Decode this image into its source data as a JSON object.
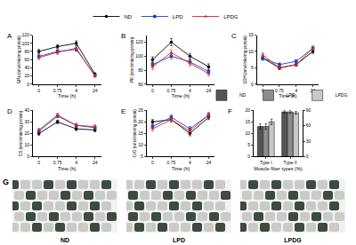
{
  "chart_data": [
    {
      "panel": "A",
      "type": "line",
      "xlabel": "Time (h)",
      "ylabel": "GPa (nmol/min/mg protein)",
      "categories": [
        "0",
        "0.75",
        "4",
        "24"
      ],
      "ylim": [
        0,
        120
      ],
      "yticks": [
        0,
        20,
        40,
        60,
        80,
        100,
        120
      ],
      "series": [
        {
          "name": "ND",
          "color": "#000000",
          "marker": "circle",
          "values": [
            80,
            92,
            100,
            25
          ],
          "errors": [
            5,
            5,
            6,
            3
          ]
        },
        {
          "name": "LPD",
          "color": "#1f3fbf",
          "marker": "square",
          "values": [
            68,
            80,
            85,
            22
          ],
          "errors": [
            5,
            5,
            5,
            3
          ]
        },
        {
          "name": "LPDG",
          "color": "#d62728",
          "marker": "triangle-up",
          "values": [
            65,
            78,
            88,
            20
          ],
          "errors": [
            5,
            5,
            5,
            3
          ]
        }
      ]
    },
    {
      "panel": "B",
      "type": "line",
      "xlabel": "Time (h)",
      "ylabel": "PK (nmol/min/mg protein)",
      "categories": [
        "0",
        "0.75",
        "4",
        "24"
      ],
      "ylim": [
        60,
        130
      ],
      "yticks": [
        60,
        80,
        100,
        120
      ],
      "series": [
        {
          "name": "ND",
          "color": "#000000",
          "marker": "circle",
          "values": [
            95,
            120,
            100,
            85
          ],
          "errors": [
            4,
            5,
            4,
            4
          ]
        },
        {
          "name": "LPD",
          "color": "#1f3fbf",
          "marker": "square",
          "values": [
            88,
            100,
            92,
            78
          ],
          "errors": [
            4,
            4,
            4,
            3
          ]
        },
        {
          "name": "LPDG",
          "color": "#d62728",
          "marker": "triangle-up",
          "values": [
            85,
            105,
            90,
            75
          ],
          "errors": [
            4,
            4,
            4,
            3
          ]
        }
      ]
    },
    {
      "panel": "C",
      "type": "line",
      "xlabel": "Time (h)",
      "ylabel": "LDH (nmol/min/mg protein)",
      "categories": [
        "0",
        "0.75",
        "4",
        "24"
      ],
      "ylim": [
        0,
        15
      ],
      "yticks": [
        0,
        5,
        10,
        15
      ],
      "series": [
        {
          "name": "ND",
          "color": "#000000",
          "marker": "circle",
          "values": [
            8,
            5,
            6,
            10
          ],
          "errors": [
            0.6,
            0.5,
            0.5,
            0.6
          ]
        },
        {
          "name": "LPD",
          "color": "#1f3fbf",
          "marker": "square",
          "values": [
            8,
            6,
            7,
            11
          ],
          "errors": [
            0.6,
            0.5,
            0.5,
            0.6
          ]
        },
        {
          "name": "LPDG",
          "color": "#d62728",
          "marker": "triangle-up",
          "values": [
            9,
            5,
            6,
            11
          ],
          "errors": [
            0.6,
            0.5,
            0.5,
            0.6
          ]
        }
      ]
    },
    {
      "panel": "D",
      "type": "line",
      "xlabel": "Time (h)",
      "ylabel": "CS (nmol/min/mg protein)",
      "categories": [
        "0",
        "0.75",
        "4",
        "24"
      ],
      "ylim": [
        0,
        40
      ],
      "yticks": [
        0,
        10,
        20,
        30,
        40
      ],
      "series": [
        {
          "name": "ND",
          "color": "#000000",
          "marker": "circle",
          "values": [
            20,
            30,
            24,
            23
          ],
          "errors": [
            1.5,
            1.5,
            1.5,
            1.5
          ]
        },
        {
          "name": "LPD",
          "color": "#1f3fbf",
          "marker": "square",
          "values": [
            22,
            35,
            27,
            25
          ],
          "errors": [
            1.5,
            1.5,
            1.5,
            1.5
          ]
        },
        {
          "name": "LPDG",
          "color": "#d62728",
          "marker": "triangle-up",
          "values": [
            23,
            36,
            27,
            26
          ],
          "errors": [
            1.5,
            1.5,
            1.5,
            1.5
          ]
        }
      ]
    },
    {
      "panel": "E",
      "type": "line",
      "xlabel": "Time (h)",
      "ylabel": "CcO (nmol/min/mg protein)",
      "categories": [
        "0",
        "0.75",
        "4",
        "24"
      ],
      "ylim": [
        5,
        25
      ],
      "yticks": [
        5,
        10,
        15,
        20,
        25
      ],
      "series": [
        {
          "name": "ND",
          "color": "#000000",
          "marker": "circle",
          "values": [
            20,
            21,
            15,
            22
          ],
          "errors": [
            1,
            1,
            1,
            1
          ]
        },
        {
          "name": "LPD",
          "color": "#1f3fbf",
          "marker": "square",
          "values": [
            18,
            22,
            17,
            23
          ],
          "errors": [
            1,
            1,
            1,
            1
          ]
        },
        {
          "name": "LPDG",
          "color": "#d62728",
          "marker": "triangle-up",
          "values": [
            17,
            21,
            16,
            23
          ],
          "errors": [
            1,
            1,
            1,
            1
          ]
        }
      ]
    },
    {
      "panel": "F",
      "type": "bar",
      "xlabel": "Muscle fiber types (%)",
      "categories": [
        "Type I",
        "Type II"
      ],
      "ylim": [
        0,
        20
      ],
      "yticks": [
        0,
        5,
        10,
        15,
        20
      ],
      "y2lim": [
        0,
        90
      ],
      "y2ticks": [
        0,
        30,
        60,
        90
      ],
      "series": [
        {
          "name": "ND",
          "color": "#555555",
          "values": [
            13,
            null
          ],
          "errors": [
            1.2,
            null
          ]
        },
        {
          "name": "LPD",
          "color": "#8c8c8c",
          "values": [
            13,
            null
          ],
          "errors": [
            1.2,
            null
          ]
        },
        {
          "name": "LPDG",
          "color": "#c8c8c8",
          "values": [
            15,
            null
          ],
          "errors": [
            1.2,
            null
          ]
        },
        {
          "name": "ND",
          "color": "#555555",
          "axis": "y2",
          "values": [
            null,
            87
          ],
          "errors": [
            null,
            3
          ]
        },
        {
          "name": "LPD",
          "color": "#8c8c8c",
          "axis": "y2",
          "values": [
            null,
            87
          ],
          "errors": [
            null,
            3
          ]
        },
        {
          "name": "LPDG",
          "color": "#c8c8c8",
          "axis": "y2",
          "values": [
            null,
            85
          ],
          "errors": [
            null,
            3
          ]
        }
      ]
    }
  ],
  "images": {
    "panel": "G",
    "labels": [
      "ND",
      "LPD",
      "LPDG"
    ]
  }
}
